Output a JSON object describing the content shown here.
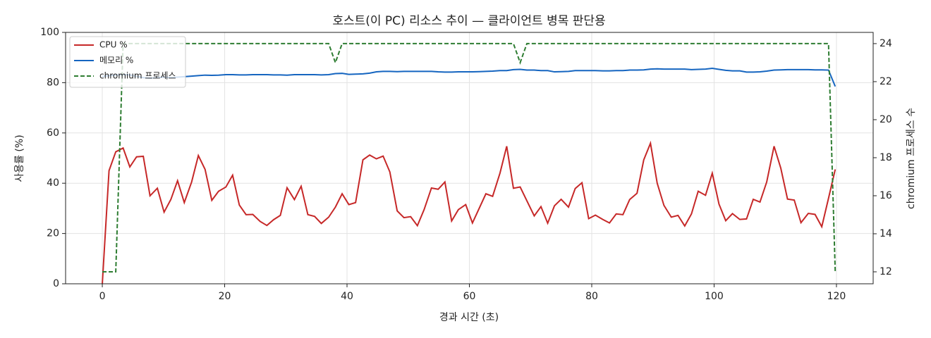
{
  "chart_data": {
    "type": "line",
    "title": "호스트(이 PC) 리소스 추이 — 클라이언트 병목 판단용",
    "xlabel": "경과 시간 (초)",
    "ylabel": "사용률 (%)",
    "y2label": "chromium 프로세스 수",
    "x": [
      0,
      1.1,
      2.2,
      3.4,
      4.5,
      5.6,
      6.7,
      7.8,
      9.0,
      10.1,
      11.2,
      12.3,
      13.4,
      14.6,
      15.7,
      16.8,
      17.9,
      19.0,
      20.2,
      21.3,
      22.4,
      23.5,
      24.6,
      25.8,
      26.9,
      28.0,
      29.1,
      30.2,
      31.4,
      32.5,
      33.6,
      34.7,
      35.8,
      37.0,
      38.1,
      39.2,
      40.3,
      41.4,
      42.6,
      43.7,
      44.8,
      45.9,
      47.0,
      48.2,
      49.3,
      50.4,
      51.5,
      52.6,
      53.8,
      54.9,
      56.0,
      57.1,
      58.2,
      59.4,
      60.5,
      61.6,
      62.7,
      63.8,
      65.0,
      66.1,
      67.2,
      68.3,
      69.4,
      70.6,
      71.7,
      72.8,
      73.9,
      75.0,
      76.2,
      77.3,
      78.4,
      79.5,
      80.6,
      81.8,
      82.9,
      84.0,
      85.1,
      86.2,
      87.4,
      88.5,
      89.6,
      90.7,
      91.8,
      93.0,
      94.1,
      95.2,
      96.3,
      97.4,
      98.6,
      99.7,
      100.8,
      101.9,
      103.0,
      104.2,
      105.3,
      106.4,
      107.5,
      108.6,
      109.8,
      110.9,
      112.0,
      113.1,
      114.2,
      115.4,
      116.5,
      117.6,
      118.7,
      119.8
    ],
    "series": [
      {
        "name": "CPU %",
        "color": "#c62828",
        "linestyle": "solid",
        "values": [
          0,
          45,
          52.5,
          54,
          46.5,
          50.5,
          50.7,
          35,
          38,
          28.5,
          33.5,
          41,
          32.3,
          40.5,
          51,
          45.5,
          33.2,
          36.8,
          38.5,
          43.2,
          31.3,
          27.5,
          27.6,
          24.8,
          23.2,
          25.5,
          27.2,
          38.2,
          33.5,
          38.8,
          27.5,
          26.8,
          24,
          26.5,
          30.5,
          35.8,
          31.5,
          32.3,
          49.3,
          51.2,
          49.7,
          50.8,
          44.5,
          29,
          26.3,
          26.7,
          23.1,
          29.5,
          38.1,
          37.6,
          40.5,
          25,
          29.5,
          31.5,
          24.2,
          30,
          35.8,
          34.8,
          44,
          54.7,
          38,
          38.5,
          33,
          27,
          30.7,
          24.1,
          31,
          33.6,
          30.5,
          37.9,
          40.2,
          25.9,
          27.3,
          25.6,
          24.2,
          27.8,
          27.5,
          33.5,
          36,
          49.3,
          55.9,
          40,
          31.2,
          26.5,
          27.2,
          23,
          27.8,
          36.8,
          35.2,
          44,
          31.7,
          25.1,
          27.9,
          25.6,
          25.8,
          33.6,
          32.5,
          40.5,
          54.7,
          46,
          33.7,
          33.3,
          24.3,
          28,
          27.6,
          22.7,
          34,
          45.5
        ]
      },
      {
        "name": "메모리 %",
        "color": "#1565c0",
        "linestyle": "solid",
        "values": [
          82.5,
          82.8,
          83.0,
          83.2,
          83.1,
          82.5,
          82.0,
          81.8,
          82.0,
          82.2,
          82.0,
          82.2,
          82.4,
          82.6,
          82.8,
          83.0,
          82.9,
          83.0,
          83.2,
          83.2,
          83.1,
          83.1,
          83.2,
          83.2,
          83.2,
          83.1,
          83.1,
          83.0,
          83.2,
          83.2,
          83.2,
          83.2,
          83.1,
          83.2,
          83.6,
          83.7,
          83.3,
          83.4,
          83.5,
          83.8,
          84.3,
          84.5,
          84.5,
          84.4,
          84.5,
          84.5,
          84.5,
          84.5,
          84.5,
          84.3,
          84.2,
          84.2,
          84.3,
          84.3,
          84.3,
          84.4,
          84.5,
          84.6,
          84.8,
          84.8,
          85.2,
          85.3,
          85.0,
          85.0,
          84.8,
          84.8,
          84.3,
          84.4,
          84.5,
          84.8,
          84.8,
          84.8,
          84.8,
          84.7,
          84.7,
          84.8,
          84.8,
          85.0,
          85.0,
          85.1,
          85.4,
          85.5,
          85.4,
          85.4,
          85.4,
          85.4,
          85.2,
          85.3,
          85.4,
          85.7,
          85.3,
          84.9,
          84.7,
          84.7,
          84.2,
          84.2,
          84.3,
          84.6,
          85.0,
          85.1,
          85.2,
          85.2,
          85.2,
          85.2,
          85.1,
          85.1,
          85.0,
          78.5
        ]
      },
      {
        "name": "chromium 프로세스",
        "color": "#2e7d32",
        "linestyle": "dashed",
        "axis": "y2",
        "values": [
          12,
          12,
          12,
          24,
          24,
          24,
          24,
          24,
          24,
          24,
          24,
          24,
          24,
          24,
          24,
          24,
          24,
          24,
          24,
          24,
          24,
          24,
          24,
          24,
          24,
          24,
          24,
          24,
          24,
          24,
          24,
          24,
          24,
          24,
          23,
          24,
          24,
          24,
          24,
          24,
          24,
          24,
          24,
          24,
          24,
          24,
          24,
          24,
          24,
          24,
          24,
          24,
          24,
          24,
          24,
          24,
          24,
          24,
          24,
          24,
          24,
          23,
          24,
          24,
          24,
          24,
          24,
          24,
          24,
          24,
          24,
          24,
          24,
          24,
          24,
          24,
          24,
          24,
          24,
          24,
          24,
          24,
          24,
          24,
          24,
          24,
          24,
          24,
          24,
          24,
          24,
          24,
          24,
          24,
          24,
          24,
          24,
          24,
          24,
          24,
          24,
          24,
          24,
          24,
          24,
          24,
          24,
          12
        ]
      }
    ],
    "xlim": [
      -6,
      126
    ],
    "xticks": [
      0,
      20,
      40,
      60,
      80,
      100,
      120
    ],
    "ylim": [
      0,
      100
    ],
    "yticks": [
      0,
      20,
      40,
      60,
      80,
      100
    ],
    "y2lim": [
      11.37,
      24.59
    ],
    "y2ticks": [
      12,
      14,
      16,
      18,
      20,
      22,
      24
    ],
    "grid": true,
    "legend": "upper left"
  }
}
